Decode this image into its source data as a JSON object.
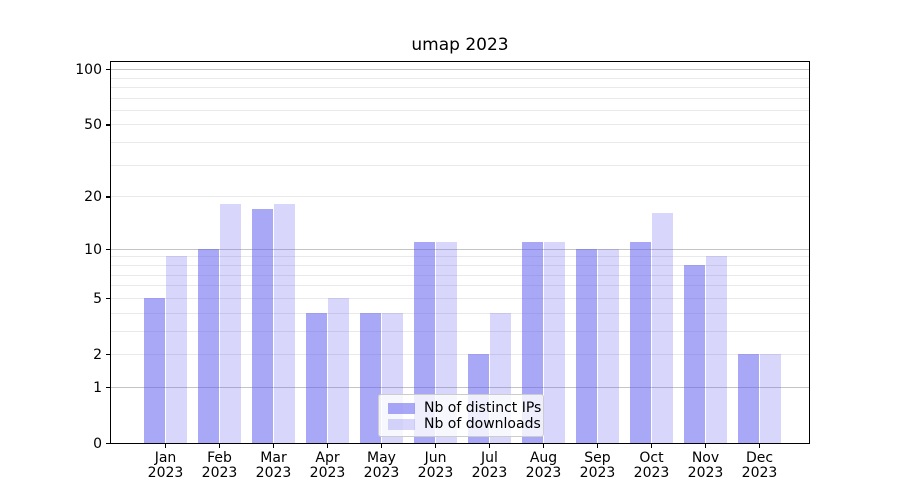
{
  "title": "umap 2023",
  "chart_data": {
    "type": "bar",
    "title": "umap 2023",
    "scale": "log1p",
    "categories": [
      "Jan",
      "Feb",
      "Mar",
      "Apr",
      "May",
      "Jun",
      "Jul",
      "Aug",
      "Sep",
      "Oct",
      "Nov",
      "Dec"
    ],
    "category_year": "2023",
    "series": [
      {
        "name": "Nb of distinct IPs",
        "color": "rgba(99,97,239,0.55)",
        "values": [
          5,
          10,
          17,
          4,
          4,
          11,
          2,
          11,
          10,
          11,
          8,
          2
        ]
      },
      {
        "name": "Nb of downloads",
        "color": "rgba(99,97,239,0.25)",
        "values": [
          9,
          18,
          18,
          5,
          4,
          11,
          4,
          11,
          10,
          16,
          9,
          2
        ]
      }
    ],
    "y_ticks": [
      100,
      50,
      20,
      10,
      5,
      2,
      1,
      0
    ],
    "y_major_gridlines": [
      1,
      10,
      100
    ],
    "y_minor_gridlines": [
      2,
      3,
      4,
      5,
      6,
      7,
      8,
      9,
      20,
      30,
      40,
      50,
      60,
      70,
      80,
      90
    ],
    "ylim": [
      0,
      112
    ],
    "xlabel": "",
    "ylabel": "",
    "grid": true,
    "legend_position": "lower center",
    "colors": {
      "bar_dark_blended": "#a9a8f6",
      "bar_light_blended": "#dcdaf9",
      "major_grid": "#c4c4c4",
      "minor_grid": "#e9e9e9",
      "axis": "#000000",
      "legend_border": "#cccccc"
    }
  }
}
